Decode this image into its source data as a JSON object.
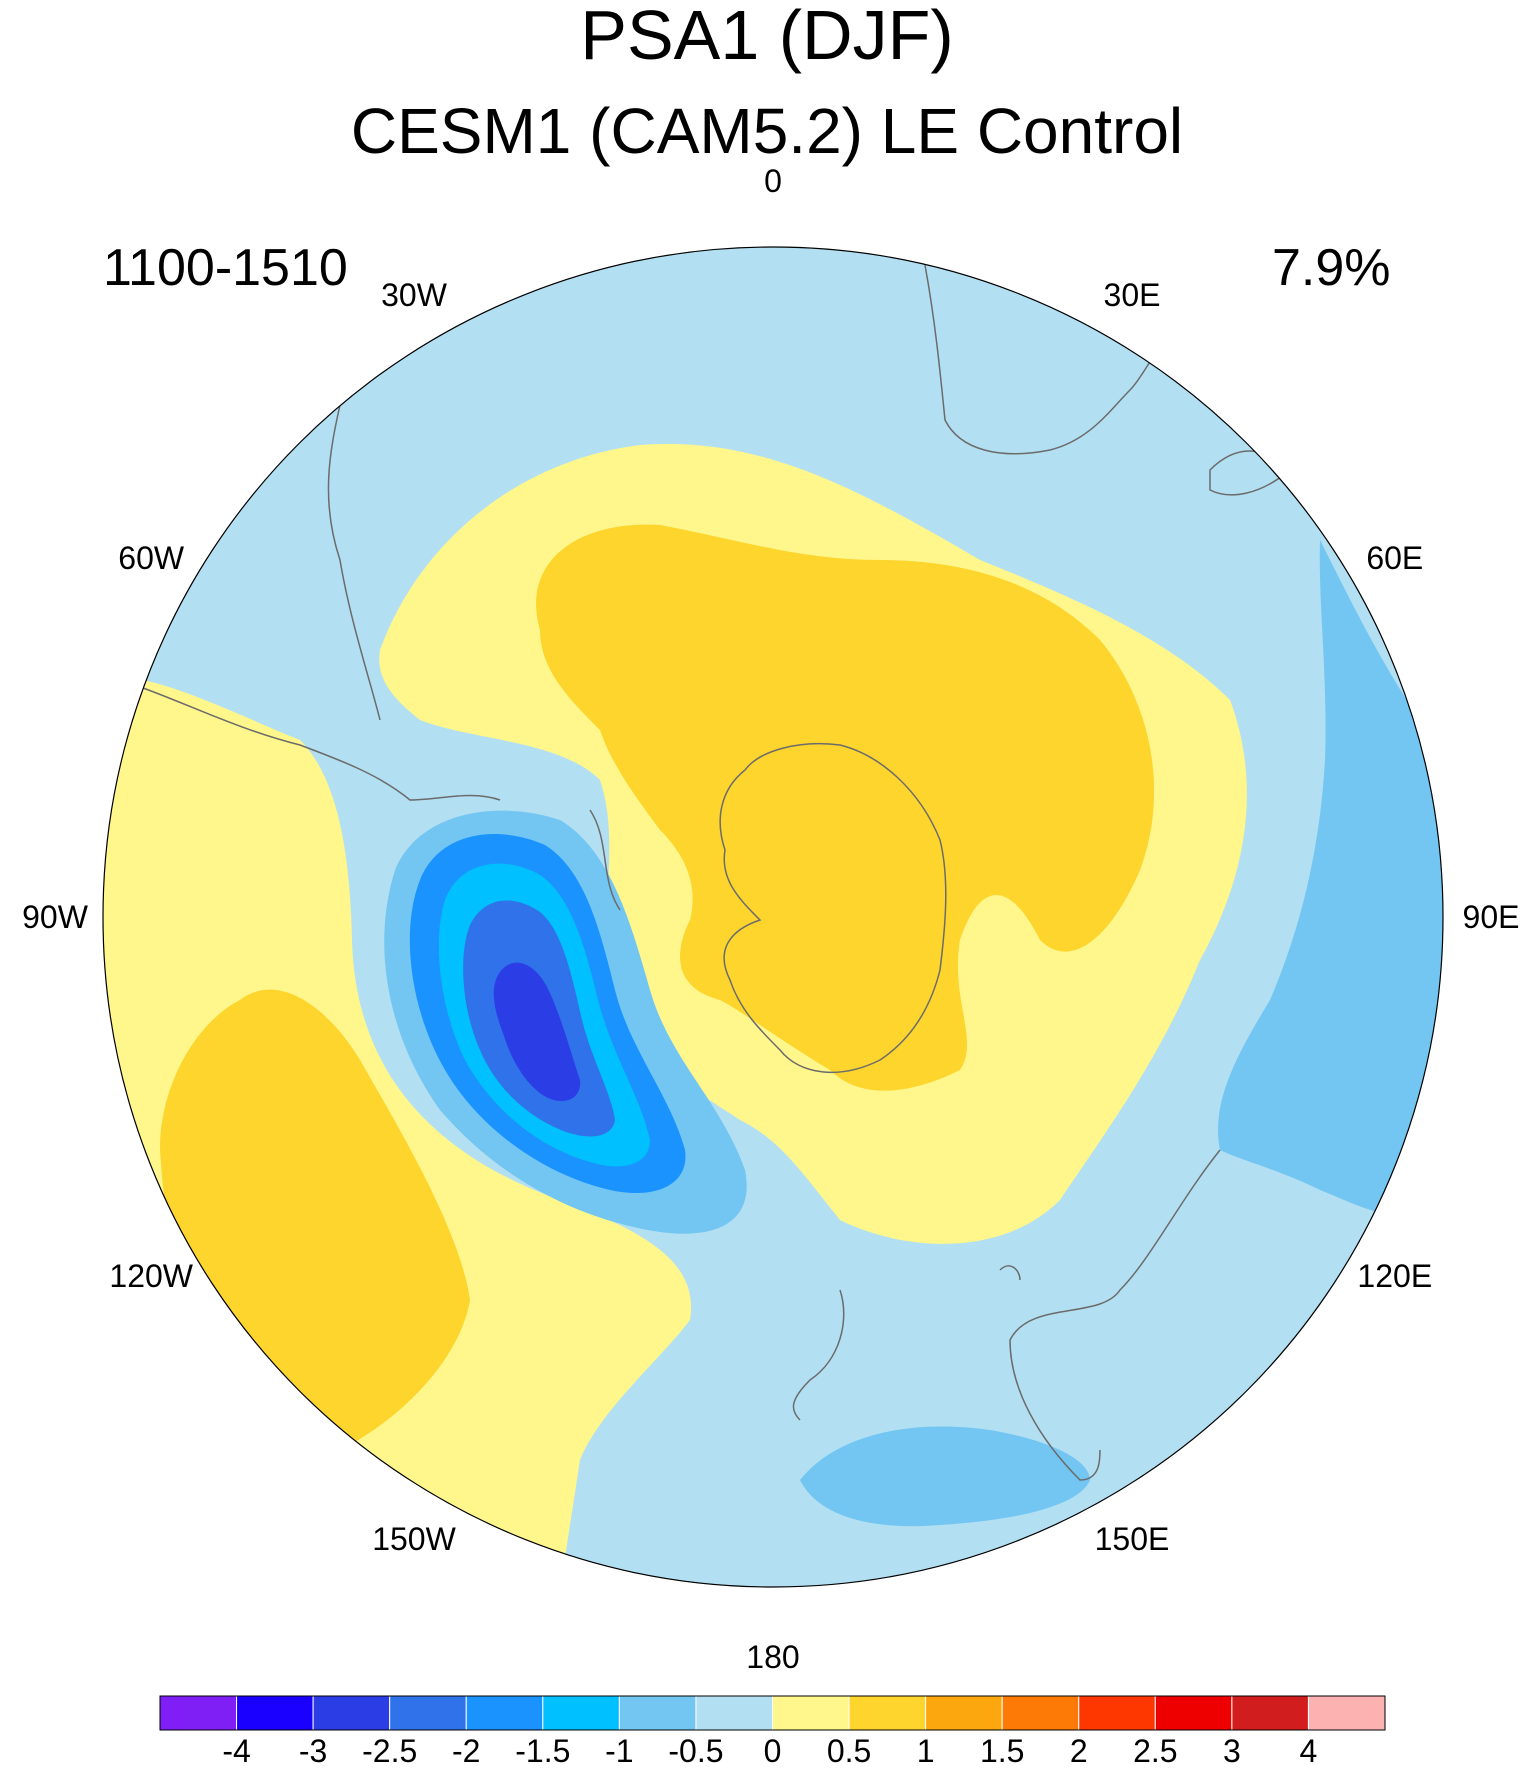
{
  "title": "PSA1 (DJF)",
  "subtitle": "CESM1 (CAM5.2) LE Control",
  "period": "1100-1510",
  "variance_explained": "7.9%",
  "longitude_labels": [
    "0",
    "30E",
    "60E",
    "90E",
    "120E",
    "150E",
    "180",
    "150W",
    "120W",
    "90W",
    "60W",
    "30W"
  ],
  "colorbar": {
    "labels": [
      "-4",
      "-3",
      "-2.5",
      "-2",
      "-1.5",
      "-1",
      "-0.5",
      "0",
      "0.5",
      "1",
      "1.5",
      "2",
      "2.5",
      "3",
      "4"
    ],
    "colors": [
      "#7f1ff5",
      "#1a00ff",
      "#2b3ee6",
      "#3072ea",
      "#1b93ff",
      "#00c0ff",
      "#72c6f1",
      "#b3dff3",
      "#fff68c",
      "#fed52d",
      "#fca70d",
      "#fd7a06",
      "#fe3700",
      "#ef0000",
      "#d11d1d",
      "#fdb2b2"
    ]
  },
  "map": {
    "projection": "south polar stereographic",
    "ocean_background": "#b3dff3",
    "coastline_color": "#6b6b6b"
  }
}
